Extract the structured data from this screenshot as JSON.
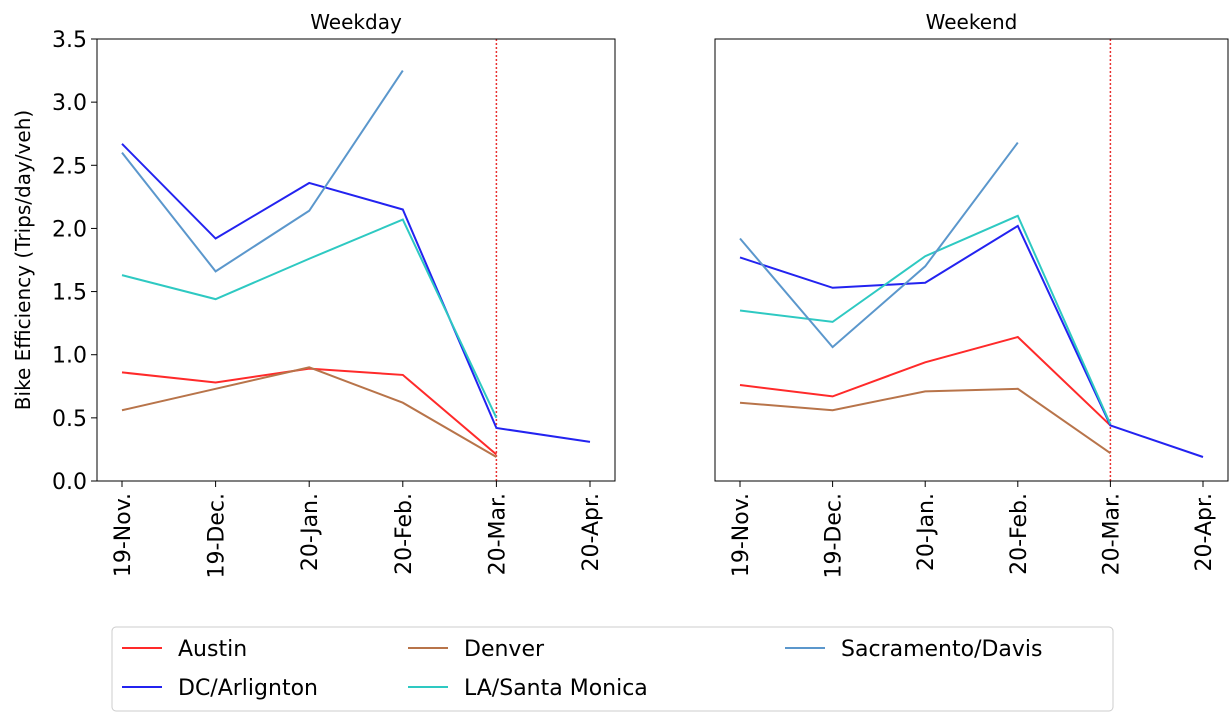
{
  "chart_data": [
    {
      "type": "line",
      "title": "Weekday",
      "ylabel": "Bike Efficiency (Trips/day/veh)",
      "categories": [
        "19-Nov.",
        "19-Dec.",
        "20-Jan.",
        "20-Feb.",
        "20-Mar.",
        "20-Apr."
      ],
      "series": [
        {
          "name": "Austin",
          "color": "#ff2a2a",
          "values": [
            0.86,
            0.78,
            0.89,
            0.84,
            0.21,
            null
          ]
        },
        {
          "name": "DC/Arlignton",
          "color": "#2323f0",
          "values": [
            2.67,
            1.92,
            2.36,
            2.15,
            0.42,
            0.31
          ]
        },
        {
          "name": "Denver",
          "color": "#b8744a",
          "values": [
            0.56,
            0.73,
            0.9,
            0.62,
            0.19,
            null
          ]
        },
        {
          "name": "LA/Santa Monica",
          "color": "#2ec9c2",
          "values": [
            1.63,
            1.44,
            1.76,
            2.07,
            0.5,
            null
          ]
        },
        {
          "name": "Sacramento/Davis",
          "color": "#5b97cc",
          "values": [
            2.6,
            1.66,
            2.14,
            3.25,
            null,
            null
          ]
        }
      ],
      "ylim": [
        0,
        3.5
      ],
      "yticks": [
        {
          "value": 0,
          "label": "0.0"
        },
        {
          "value": 0.5,
          "label": "0.5"
        },
        {
          "value": 1,
          "label": "1.0"
        },
        {
          "value": 1.5,
          "label": "1.5"
        },
        {
          "value": 2,
          "label": "2.0"
        },
        {
          "value": 2.5,
          "label": "2.5"
        },
        {
          "value": 3,
          "label": "3.0"
        },
        {
          "value": 3.5,
          "label": "3.5"
        }
      ],
      "vline_at": 4,
      "vline_color": "#e83030"
    },
    {
      "type": "line",
      "title": "Weekend",
      "categories": [
        "19-Nov.",
        "19-Dec.",
        "20-Jan.",
        "20-Feb.",
        "20-Mar.",
        "20-Apr."
      ],
      "series": [
        {
          "name": "Austin",
          "color": "#ff2a2a",
          "values": [
            0.76,
            0.67,
            0.94,
            1.14,
            0.44,
            null
          ]
        },
        {
          "name": "DC/Arlignton",
          "color": "#2323f0",
          "values": [
            1.77,
            1.53,
            1.57,
            2.02,
            0.44,
            0.19
          ]
        },
        {
          "name": "Denver",
          "color": "#b8744a",
          "values": [
            0.62,
            0.56,
            0.71,
            0.73,
            0.22,
            null
          ]
        },
        {
          "name": "LA/Santa Monica",
          "color": "#2ec9c2",
          "values": [
            1.35,
            1.26,
            1.78,
            2.1,
            0.45,
            null
          ]
        },
        {
          "name": "Sacramento/Davis",
          "color": "#5b97cc",
          "values": [
            1.92,
            1.06,
            1.7,
            2.68,
            null,
            null
          ]
        }
      ],
      "ylim": [
        0,
        3.5
      ],
      "vline_at": 4,
      "vline_color": "#e83030"
    }
  ]
}
